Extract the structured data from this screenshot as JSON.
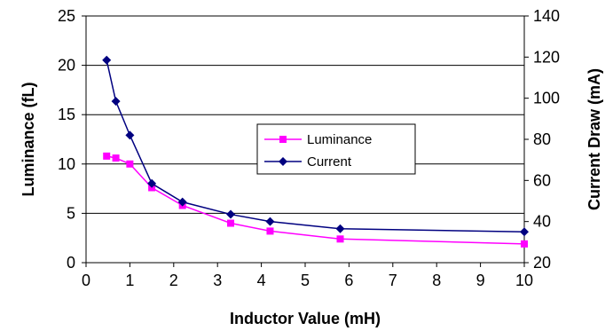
{
  "chart_data": {
    "type": "line",
    "title": "",
    "xlabel": "Inductor Value (mH)",
    "ylabel": "Luminance (fL)",
    "y2label": "Current Draw (mA)",
    "xlim": [
      0,
      10
    ],
    "ylim": [
      0,
      25
    ],
    "y2lim": [
      20,
      140
    ],
    "x_ticks": [
      "0",
      "1",
      "2",
      "3",
      "4",
      "5",
      "6",
      "7",
      "8",
      "9",
      "10"
    ],
    "y_ticks": [
      "0",
      "5",
      "10",
      "15",
      "20",
      "25"
    ],
    "y2_ticks": [
      "20",
      "40",
      "60",
      "80",
      "100",
      "120",
      "140"
    ],
    "grid": "horizontal",
    "legend": "center",
    "series": [
      {
        "name": "Luminance",
        "axis": "left",
        "color": "#ff00ff",
        "marker": "square",
        "x": [
          0.47,
          0.68,
          1.0,
          1.5,
          2.2,
          3.3,
          4.2,
          5.8,
          10.0
        ],
        "y": [
          10.8,
          10.6,
          10.0,
          7.6,
          5.8,
          4.0,
          3.2,
          2.4,
          1.9
        ]
      },
      {
        "name": "Current",
        "axis": "right",
        "color": "#000080",
        "marker": "diamond",
        "x": [
          0.47,
          0.68,
          1.0,
          1.5,
          2.2,
          3.3,
          4.2,
          5.8,
          10.0
        ],
        "y": [
          118.5,
          98.5,
          82.0,
          58.5,
          49.5,
          43.5,
          40.0,
          36.5,
          35.0
        ]
      }
    ]
  }
}
